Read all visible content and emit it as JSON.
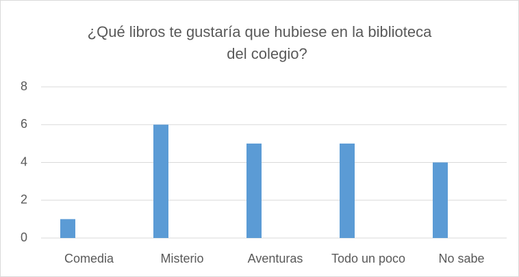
{
  "chart_data": {
    "type": "bar",
    "title": [
      "¿Qué libros te gustaría que hubiese en la biblioteca",
      "del colegio?"
    ],
    "categories": [
      "Comedia",
      "Misterio",
      "Aventuras",
      "Todo un poco",
      "No sabe"
    ],
    "values": [
      1,
      6,
      5,
      5,
      4
    ],
    "color": "#5b9bd5",
    "ylim": [
      0,
      8
    ],
    "yticks": [
      0,
      2,
      4,
      6,
      8
    ],
    "grid": true
  }
}
